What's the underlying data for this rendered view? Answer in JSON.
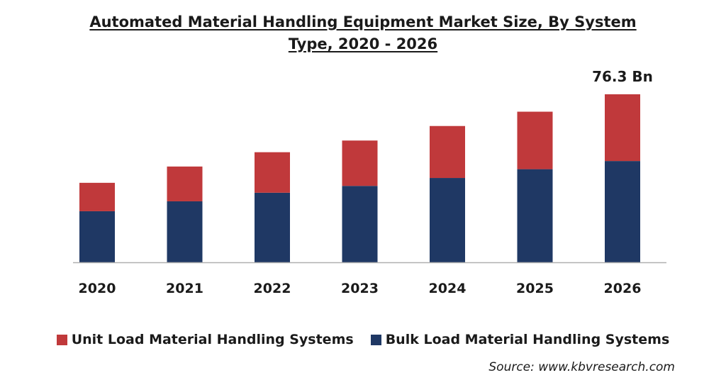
{
  "title_line1": "Automated Material Handling Equipment Market Size, By System",
  "title_line2": "Type, 2020 - 2026",
  "source": "Source: www.kbvresearch.com",
  "colors": {
    "unit": "#c0393b",
    "bulk": "#1f3864",
    "axis": "#b0b0b0"
  },
  "chart_data": {
    "type": "bar",
    "stacked": true,
    "title": "Automated Material Handling Equipment Market Size, By System Type, 2020 - 2026",
    "categories": [
      "2020",
      "2021",
      "2022",
      "2023",
      "2024",
      "2025",
      "2026"
    ],
    "series": [
      {
        "name": "Bulk Load Material Handling Systems",
        "values": [
          23.2,
          27.7,
          31.6,
          34.7,
          38.3,
          42.3,
          46.0
        ]
      },
      {
        "name": "Unit Load Material Handling Systems",
        "values": [
          12.9,
          15.8,
          18.4,
          20.6,
          23.6,
          26.1,
          30.3
        ]
      }
    ],
    "annotations": [
      {
        "category": "2026",
        "text": "76.3 Bn"
      }
    ],
    "ylim": [
      0,
      76.3
    ],
    "grid": false,
    "legend_position": "bottom"
  }
}
